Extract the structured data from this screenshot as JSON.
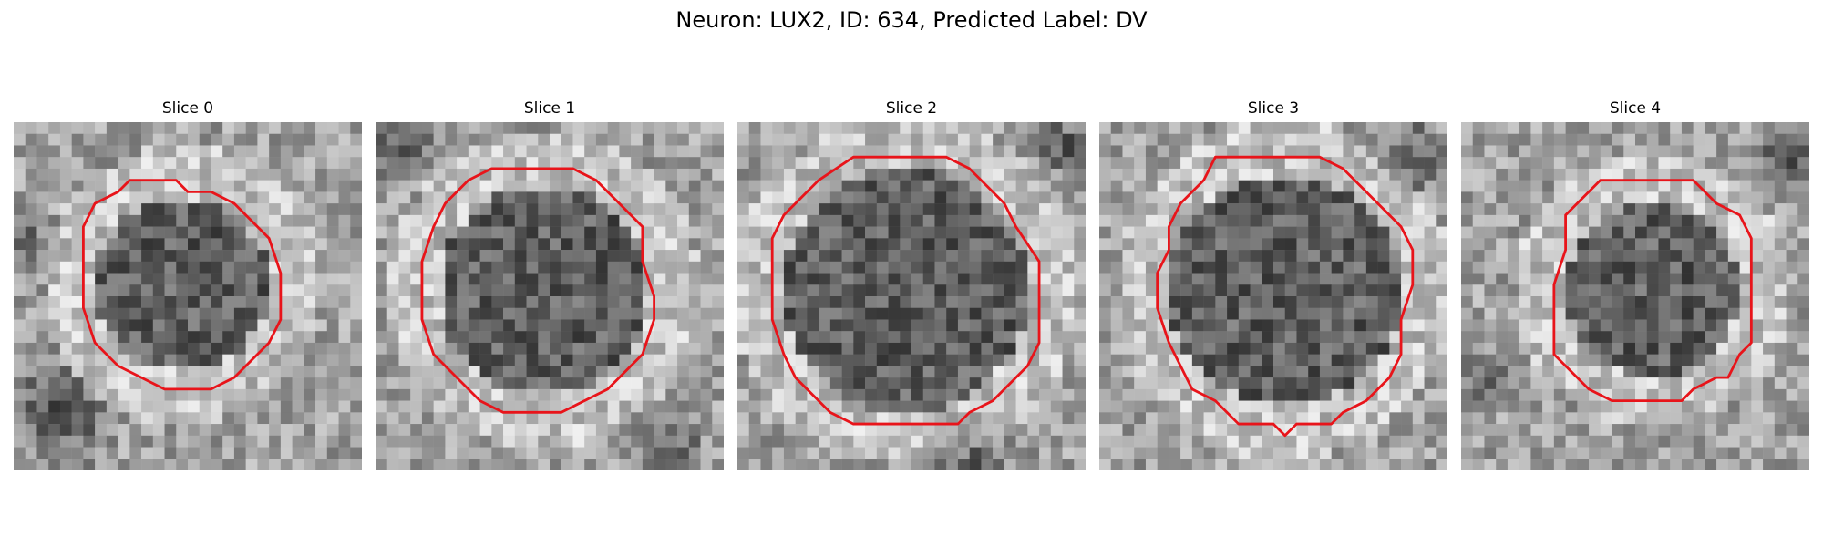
{
  "figure": {
    "title": "Neuron: LUX2, ID: 634, Predicted Label: DV"
  },
  "colors": {
    "contour": "#e8141a",
    "background": "#ffffff"
  },
  "panels": [
    {
      "title": "Slice 0"
    },
    {
      "title": "Slice 1"
    },
    {
      "title": "Slice 2"
    },
    {
      "title": "Slice 3"
    },
    {
      "title": "Slice 4"
    }
  ]
}
